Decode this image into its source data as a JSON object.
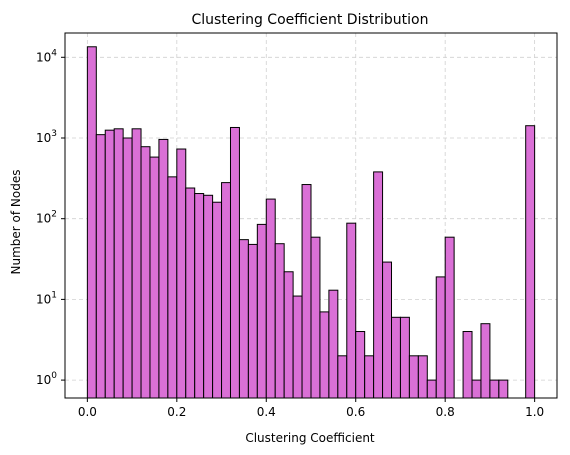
{
  "chart_data": {
    "type": "bar",
    "title": "Clustering Coefficient Distribution",
    "xlabel": "Clustering Coefficient",
    "ylabel": "Number of Nodes",
    "yscale": "log",
    "xlim": [
      -0.05,
      1.05
    ],
    "ylim": [
      0.6,
      20000
    ],
    "grid": true,
    "bar_color": "#da70d6",
    "edge_color": "#000000",
    "bin_width": 0.02,
    "bin_start": 0.0,
    "values": [
      13500,
      1100,
      1250,
      1300,
      1000,
      1300,
      780,
      580,
      960,
      330,
      730,
      240,
      205,
      195,
      160,
      280,
      1350,
      55,
      48,
      85,
      175,
      49,
      22,
      11,
      265,
      59,
      7,
      13,
      2,
      88,
      4,
      2,
      380,
      29,
      6,
      6,
      2,
      2,
      1,
      19,
      59,
      0,
      4,
      1,
      5,
      1,
      1,
      0,
      0,
      1420
    ],
    "xticks": [
      "0.0",
      "0.2",
      "0.4",
      "0.6",
      "0.8",
      "1.0"
    ],
    "xtick_values": [
      0,
      0.2,
      0.4,
      0.6,
      0.8,
      1.0
    ],
    "yticks": [
      1,
      10,
      100,
      1000,
      10000
    ]
  }
}
